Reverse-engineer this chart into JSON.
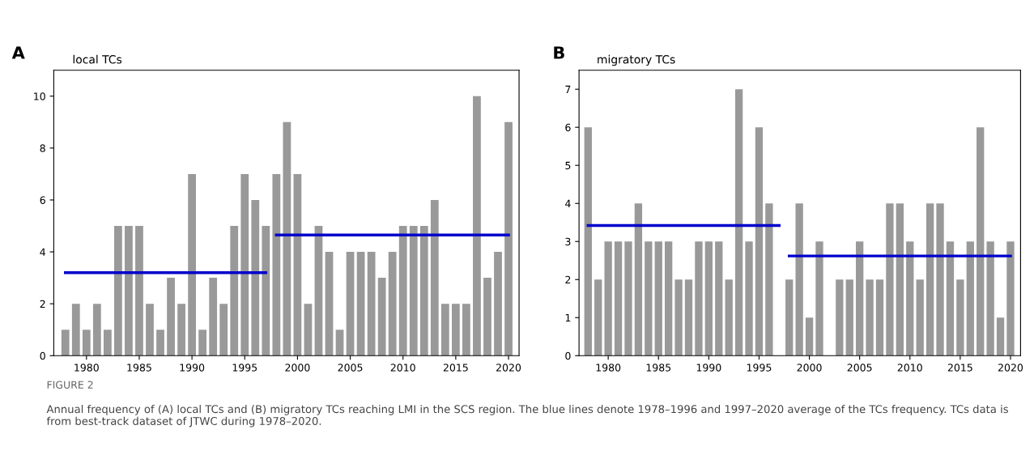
{
  "chart_data": [
    {
      "type": "bar",
      "title": "local TCs",
      "annotations": [
        "A",
        "FIGURE 2",
        "Annual frequency of (A) local TCs and (B) migratory TCs reaching LMI in the SCS region. The blue lines denote 1978–1996 and 1997–2020 average of the TCs frequency. TCs data is from best-track dataset of JTWC during 1978–2020."
      ],
      "x": [
        1978,
        1979,
        1980,
        1981,
        1982,
        1983,
        1984,
        1985,
        1986,
        1987,
        1988,
        1989,
        1990,
        1991,
        1992,
        1993,
        1994,
        1995,
        1996,
        1997,
        1998,
        1999,
        2000,
        2001,
        2002,
        2003,
        2004,
        2005,
        2006,
        2007,
        2008,
        2009,
        2010,
        2011,
        2012,
        2013,
        2014,
        2015,
        2016,
        2017,
        2018,
        2019,
        2020
      ],
      "series": [
        {
          "color": "#999999",
          "values": [
            1,
            2,
            1,
            2,
            1,
            5,
            5,
            5,
            2,
            1,
            3,
            2,
            7,
            1,
            3,
            2,
            5,
            7,
            6,
            5,
            7,
            9,
            7,
            2,
            5,
            4,
            1,
            4,
            4,
            4,
            3,
            4,
            5,
            5,
            5,
            6,
            2,
            2,
            2,
            10,
            3,
            4,
            9
          ]
        },
        {
          "type": "line",
          "color": "#0000cc",
          "x": [
            1978,
            1997
          ],
          "values": [
            3.2,
            3.2
          ]
        },
        {
          "type": "line",
          "color": "#0000cc",
          "x": [
            1998,
            2020
          ],
          "values": [
            4.65,
            4.65
          ]
        }
      ],
      "xlim": [
        1976.9,
        2021.0
      ],
      "xticks": [
        1980,
        1985,
        1990,
        1995,
        2000,
        2005,
        2010,
        2015,
        2020
      ],
      "ylim": [
        0,
        11
      ],
      "yticks": [
        0,
        2,
        4,
        6,
        8,
        10
      ],
      "grid": false
    },
    {
      "type": "bar",
      "title": "migratory TCs",
      "annotations": [
        "B"
      ],
      "x": [
        1978,
        1979,
        1980,
        1981,
        1982,
        1983,
        1984,
        1985,
        1986,
        1987,
        1988,
        1989,
        1990,
        1991,
        1992,
        1993,
        1994,
        1995,
        1996,
        1997,
        1998,
        1999,
        2000,
        2001,
        2002,
        2003,
        2004,
        2005,
        2006,
        2007,
        2008,
        2009,
        2010,
        2011,
        2012,
        2013,
        2014,
        2015,
        2016,
        2017,
        2018,
        2019,
        2020
      ],
      "series": [
        {
          "color": "#999999",
          "values": [
            6,
            2,
            3,
            3,
            3,
            4,
            3,
            3,
            3,
            2,
            2,
            3,
            3,
            3,
            2,
            7,
            3,
            6,
            4,
            0,
            2,
            4,
            1,
            3,
            0,
            2,
            2,
            3,
            2,
            2,
            4,
            4,
            3,
            2,
            4,
            4,
            3,
            2,
            3,
            6,
            3,
            1,
            3
          ]
        },
        {
          "type": "line",
          "color": "#0000cc",
          "x": [
            1978,
            1997
          ],
          "values": [
            3.42,
            3.42
          ]
        },
        {
          "type": "line",
          "color": "#0000cc",
          "x": [
            1998,
            2020
          ],
          "values": [
            2.62,
            2.62
          ]
        }
      ],
      "xlim": [
        1977.1,
        2021.0
      ],
      "xticks": [
        1980,
        1985,
        1990,
        1995,
        2000,
        2005,
        2010,
        2015,
        2020
      ],
      "ylim": [
        0,
        7.5
      ],
      "yticks": [
        0,
        1,
        2,
        3,
        4,
        5,
        6,
        7
      ],
      "grid": false
    }
  ]
}
